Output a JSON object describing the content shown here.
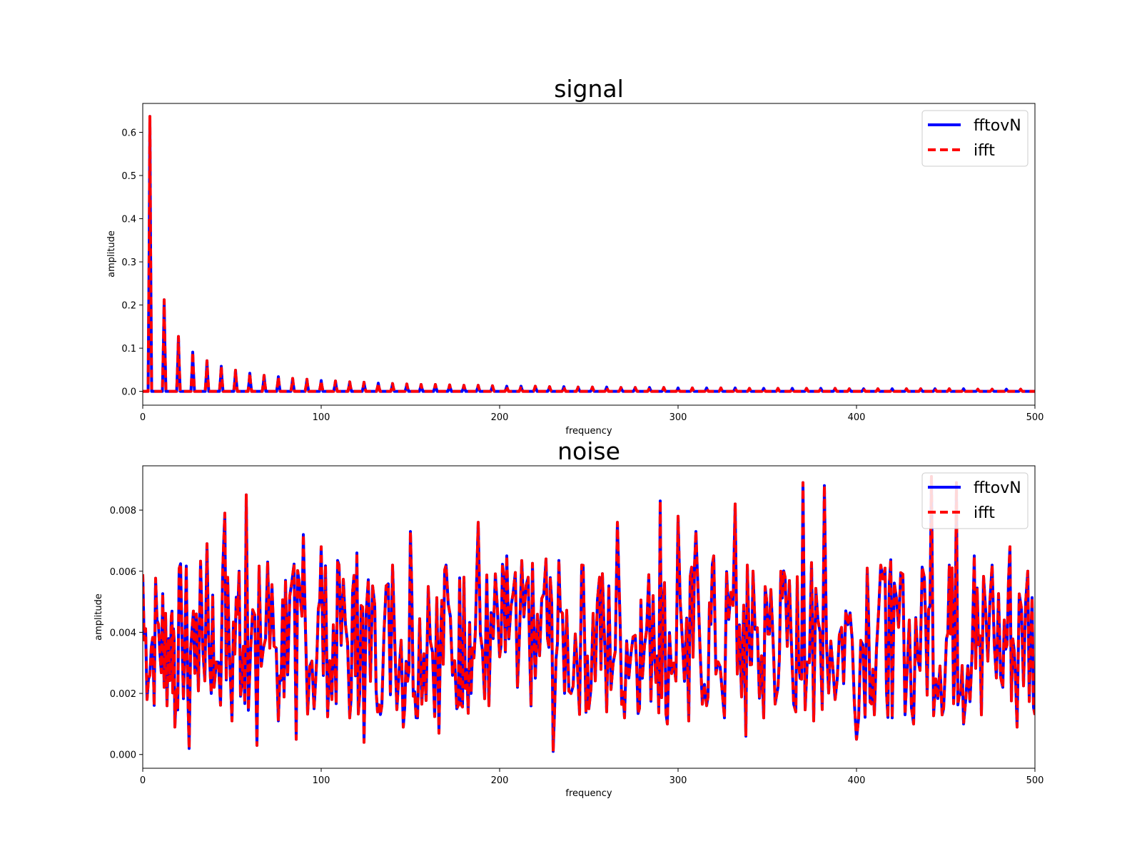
{
  "chart_data": [
    {
      "type": "line",
      "title": "signal",
      "xlabel": "frequency",
      "ylabel": "amplitude",
      "xlim": [
        0,
        500
      ],
      "ylim": [
        -0.032,
        0.667
      ],
      "xticks": [
        0,
        100,
        200,
        300,
        400,
        500
      ],
      "yticks": [
        0.0,
        0.1,
        0.2,
        0.3,
        0.4,
        0.5,
        0.6
      ],
      "ytick_labels": [
        "0.0",
        "0.1",
        "0.2",
        "0.3",
        "0.4",
        "0.5",
        "0.6"
      ],
      "legend_position": "upper right",
      "grid": false,
      "peaks_note_free": true,
      "peaks": {
        "x": [
          4,
          12,
          20,
          28,
          36,
          44,
          52,
          60,
          68,
          76,
          84,
          92,
          100,
          108,
          116,
          124,
          132,
          140,
          148,
          156,
          164,
          172,
          180,
          188,
          196,
          204,
          212,
          220,
          228,
          236,
          244,
          252,
          260,
          268,
          276,
          284,
          292,
          300,
          308,
          316,
          324,
          332,
          340,
          348,
          356,
          364,
          372,
          380,
          388,
          396,
          404,
          412,
          420,
          428,
          436,
          444,
          452,
          460,
          468,
          476,
          484,
          492
        ],
        "y": [
          0.637,
          0.212,
          0.127,
          0.091,
          0.071,
          0.058,
          0.049,
          0.042,
          0.037,
          0.034,
          0.03,
          0.028,
          0.025,
          0.024,
          0.022,
          0.021,
          0.019,
          0.018,
          0.017,
          0.016,
          0.016,
          0.015,
          0.014,
          0.014,
          0.013,
          0.012,
          0.012,
          0.012,
          0.011,
          0.011,
          0.01,
          0.01,
          0.01,
          0.009,
          0.009,
          0.009,
          0.009,
          0.008,
          0.008,
          0.008,
          0.008,
          0.008,
          0.007,
          0.007,
          0.007,
          0.007,
          0.007,
          0.007,
          0.007,
          0.006,
          0.006,
          0.006,
          0.006,
          0.006,
          0.006,
          0.006,
          0.006,
          0.006,
          0.005,
          0.005,
          0.005,
          0.005
        ]
      },
      "series": [
        {
          "name": "fftovN",
          "color": "#0000ff",
          "style": "solid"
        },
        {
          "name": "ifft",
          "color": "#ff0000",
          "style": "dashed"
        }
      ]
    },
    {
      "type": "line",
      "title": "noise",
      "xlabel": "frequency",
      "ylabel": "amplitude",
      "xlim": [
        0,
        500
      ],
      "ylim": [
        -0.00045,
        0.00945
      ],
      "xticks": [
        0,
        100,
        200,
        300,
        400,
        500
      ],
      "yticks": [
        0.0,
        0.002,
        0.004,
        0.006,
        0.008
      ],
      "ytick_labels": [
        "0.000",
        "0.002",
        "0.004",
        "0.006",
        "0.008"
      ],
      "legend_position": "upper right",
      "grid": false,
      "peaks": {
        "x": [
          0,
          4,
          8,
          12,
          16,
          18,
          22,
          26,
          30,
          36,
          40,
          46,
          50,
          54,
          58,
          64,
          70,
          76,
          80,
          86,
          90,
          96,
          100,
          106,
          110,
          116,
          120,
          124,
          130,
          134,
          140,
          146,
          150,
          154,
          160,
          166,
          170,
          176,
          180,
          184,
          188,
          194,
          200,
          204,
          210,
          216,
          220,
          226,
          230,
          234,
          240,
          246,
          250,
          256,
          260,
          266,
          270,
          276,
          280,
          286,
          290,
          294,
          300,
          306,
          310,
          316,
          320,
          326,
          332,
          338,
          342,
          348,
          352,
          356,
          360,
          366,
          370,
          376,
          382,
          388,
          394,
          400,
          406,
          410,
          416,
          420,
          426,
          432,
          438,
          442,
          448,
          452,
          456,
          460,
          466,
          470,
          476,
          482,
          486,
          490,
          496,
          500
        ],
        "y": [
          0.0059,
          0.0026,
          0.0044,
          0.0022,
          0.0045,
          0.0009,
          0.0038,
          0.0002,
          0.0046,
          0.0069,
          0.0022,
          0.0079,
          0.0011,
          0.006,
          0.0085,
          0.0003,
          0.0063,
          0.0011,
          0.0057,
          0.0005,
          0.0072,
          0.0015,
          0.0068,
          0.0018,
          0.0062,
          0.0012,
          0.0066,
          0.0004,
          0.0049,
          0.0016,
          0.0062,
          0.0009,
          0.0073,
          0.0012,
          0.0055,
          0.0007,
          0.0062,
          0.0015,
          0.0058,
          0.002,
          0.0076,
          0.0016,
          0.0032,
          0.0065,
          0.0022,
          0.0058,
          0.0025,
          0.0064,
          0.0001,
          0.0047,
          0.002,
          0.0062,
          0.0015,
          0.0058,
          0.0014,
          0.0076,
          0.0012,
          0.0039,
          0.0025,
          0.0052,
          0.0083,
          0.001,
          0.0078,
          0.0011,
          0.0073,
          0.0016,
          0.0065,
          0.0012,
          0.0082,
          0.0006,
          0.006,
          0.0012,
          0.0054,
          0.0022,
          0.0058,
          0.0014,
          0.0089,
          0.0011,
          0.0088,
          0.0018,
          0.0047,
          0.0005,
          0.0061,
          0.0013,
          0.0061,
          0.0012,
          0.0059,
          0.001,
          0.0058,
          0.0091,
          0.0013,
          0.0062,
          0.0089,
          0.001,
          0.0065,
          0.0013,
          0.0062,
          0.0022,
          0.0068,
          0.0009,
          0.006,
          0.0013
        ]
      },
      "series": [
        {
          "name": "fftovN",
          "color": "#0000ff",
          "style": "solid"
        },
        {
          "name": "ifft",
          "color": "#ff0000",
          "style": "dashed"
        }
      ]
    }
  ]
}
